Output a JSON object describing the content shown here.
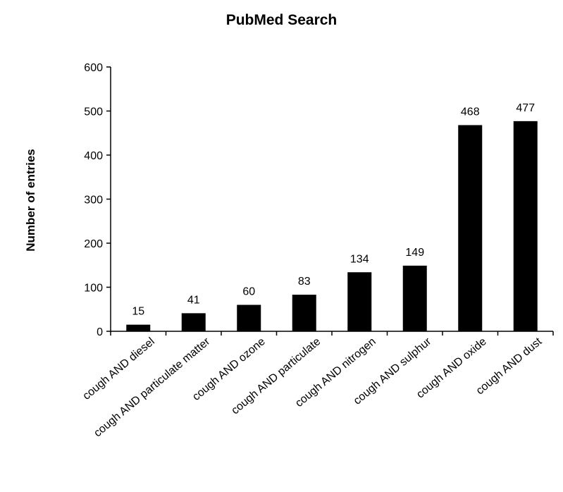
{
  "chart_data": {
    "type": "bar",
    "title": "PubMed Search",
    "xlabel": "",
    "ylabel": "Number of entries",
    "categories": [
      "cough AND diesel",
      "cough AND particulate matter",
      "cough AND ozone",
      "cough AND particulate",
      "cough AND nitrogen",
      "cough AND sulphur",
      "cough AND oxide",
      "cough AND dust"
    ],
    "values": [
      15,
      41,
      60,
      83,
      134,
      149,
      468,
      477
    ],
    "data_labels": [
      "15",
      "41",
      "60",
      "83",
      "134",
      "149",
      "468",
      "477"
    ],
    "yticks": [
      0,
      100,
      200,
      300,
      400,
      500,
      600
    ],
    "ylim": [
      0,
      600
    ],
    "grid": false,
    "legend": "none",
    "bar_color": "#000000"
  }
}
